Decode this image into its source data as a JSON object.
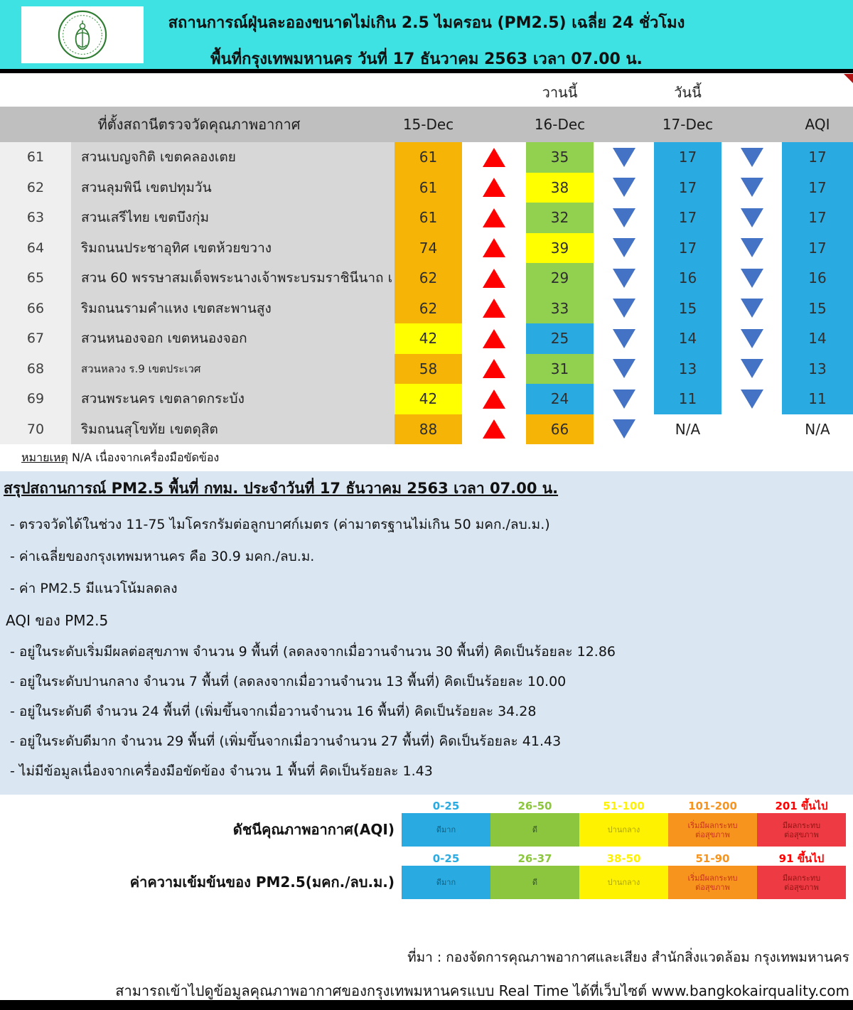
{
  "header": {
    "title_line1": "สถานการณ์ฝุ่นละอองขนาดไม่เกิน 2.5 ไมครอน (PM2.5) เฉลี่ย 24 ชั่วโมง",
    "title_line2": "พื้นที่กรุงเทพมหานคร วันที่ 17 ธันวาคม 2563 เวลา 07.00 น.",
    "logo": "bangkok-metropolitan-administration-seal",
    "bg_color": "#3FE2E2"
  },
  "table": {
    "group_headers": {
      "yesterday": "วานนี้",
      "today": "วันนี้"
    },
    "columns": [
      "ที่ตั้งสถานีตรวจวัดคุณภาพอากาศ",
      "15-Dec",
      "16-Dec",
      "17-Dec",
      "AQI"
    ],
    "rows": [
      {
        "id": "61",
        "station": "สวนเบญจกิติ  เขตคลองเตย",
        "d15": "61",
        "d15_color": "orange",
        "trend1": "up",
        "d16": "35",
        "d16_color": "green",
        "trend2": "down",
        "d17": "17",
        "d17_color": "blue",
        "trend3": "down",
        "aqi": "17",
        "aqi_color": "blue",
        "small": false
      },
      {
        "id": "62",
        "station": "สวนลุมพินี เขตปทุมวัน",
        "d15": "61",
        "d15_color": "orange",
        "trend1": "up",
        "d16": "38",
        "d16_color": "yellow",
        "trend2": "down",
        "d17": "17",
        "d17_color": "blue",
        "trend3": "down",
        "aqi": "17",
        "aqi_color": "blue",
        "small": false
      },
      {
        "id": "63",
        "station": "สวนเสรีไทย  เขตบึงกุ่ม",
        "d15": "61",
        "d15_color": "orange",
        "trend1": "up",
        "d16": "32",
        "d16_color": "green",
        "trend2": "down",
        "d17": "17",
        "d17_color": "blue",
        "trend3": "down",
        "aqi": "17",
        "aqi_color": "blue",
        "small": false
      },
      {
        "id": "64",
        "station": "ริมถนนประชาอุทิศ เขตห้วยขวาง",
        "d15": "74",
        "d15_color": "orange",
        "trend1": "up",
        "d16": "39",
        "d16_color": "yellow",
        "trend2": "down",
        "d17": "17",
        "d17_color": "blue",
        "trend3": "down",
        "aqi": "17",
        "aqi_color": "blue",
        "small": false
      },
      {
        "id": "65",
        "station": "สวน 60 พรรษาสมเด็จพระนางเจ้าพระบรมราชินีนาถ เ",
        "d15": "62",
        "d15_color": "orange",
        "trend1": "up",
        "d16": "29",
        "d16_color": "green",
        "trend2": "down",
        "d17": "16",
        "d17_color": "blue",
        "trend3": "down",
        "aqi": "16",
        "aqi_color": "blue",
        "small": false
      },
      {
        "id": "66",
        "station": "ริมถนนรามคำแหง เขตสะพานสูง",
        "d15": "62",
        "d15_color": "orange",
        "trend1": "up",
        "d16": "33",
        "d16_color": "green",
        "trend2": "down",
        "d17": "15",
        "d17_color": "blue",
        "trend3": "down",
        "aqi": "15",
        "aqi_color": "blue",
        "small": false
      },
      {
        "id": "67",
        "station": "สวนหนองจอก เขตหนองจอก",
        "d15": "42",
        "d15_color": "yellow",
        "trend1": "up",
        "d16": "25",
        "d16_color": "blue",
        "trend2": "down",
        "d17": "14",
        "d17_color": "blue",
        "trend3": "down",
        "aqi": "14",
        "aqi_color": "blue",
        "small": false
      },
      {
        "id": "68",
        "station": "สวนหลวง ร.9 เขตประเวศ",
        "d15": "58",
        "d15_color": "orange",
        "trend1": "up",
        "d16": "31",
        "d16_color": "green",
        "trend2": "down",
        "d17": "13",
        "d17_color": "blue",
        "trend3": "down",
        "aqi": "13",
        "aqi_color": "blue",
        "small": true
      },
      {
        "id": "69",
        "station": "สวนพระนคร เขตลาดกระบัง",
        "d15": "42",
        "d15_color": "yellow",
        "trend1": "up",
        "d16": "24",
        "d16_color": "blue",
        "trend2": "down",
        "d17": "11",
        "d17_color": "blue",
        "trend3": "down",
        "aqi": "11",
        "aqi_color": "blue",
        "small": false
      },
      {
        "id": "70",
        "station": "ริมถนนสุโขทัย เขตดุสิต",
        "d15": "88",
        "d15_color": "orange",
        "trend1": "up",
        "d16": "66",
        "d16_color": "orange",
        "trend2": "down",
        "d17": "N/A",
        "d17_color": "none",
        "trend3": "none",
        "aqi": "N/A",
        "aqi_color": "none",
        "small": false
      }
    ]
  },
  "note": {
    "label": "หมายเหตุ",
    "text": " N/A เนื่องจากเครื่องมือขัดข้อง"
  },
  "summary": {
    "heading": "สรุปสถานการณ์ PM2.5 พื้นที่ กทม. ประจำวันที่ 17 ธันวาคม 2563 เวลา 07.00 น.",
    "bullets": [
      "- ตรวจวัดได้ในช่วง 11-75 ไมโครกรัมต่อลูกบาศก์เมตร (ค่ามาตรฐานไม่เกิน 50 มคก./ลบ.ม.)",
      "- ค่าเฉลี่ยของกรุงเทพมหานคร คือ 30.9 มคก./ลบ.ม.",
      "- ค่า PM2.5  มีแนวโน้มลดลง"
    ],
    "aqi_heading": "AQI ของ PM2.5",
    "aqi_bullets": [
      "- อยู่ในระดับเริ่มมีผลต่อสุขภาพ จำนวน 9 พื้นที่ (ลดลงจากเมื่อวานจำนวน 30 พื้นที่) คิดเป็นร้อยละ 12.86",
      "- อยู่ในระดับปานกลาง จำนวน 7 พื้นที่ (ลดลงจากเมื่อวานจำนวน 13 พื้นที่) คิดเป็นร้อยละ 10.00",
      "- อยู่ในระดับดี จำนวน 24 พื้นที่ (เพิ่มขึ้นจากเมื่อวานจำนวน 16 พื้นที่) คิดเป็นร้อยละ 34.28",
      "- อยู่ในระดับดีมาก จำนวน 29 พื้นที่ (เพิ่มขึ้นจากเมื่อวานจำนวน 27 พื้นที่) คิดเป็นร้อยละ 41.43",
      "- ไม่มีข้อมูลเนื่องจากเครื่องมือขัดข้อง จำนวน 1 พื้นที่ คิดเป็นร้อยละ 1.43"
    ]
  },
  "legends": {
    "range_colors": [
      "#29ABE2",
      "#8CC63F",
      "#FFF200",
      "#F7941E",
      "#FF0000"
    ],
    "cell_colors": [
      "#29ABE2",
      "#8CC63F",
      "#FFF200",
      "#F7941E",
      "#EE3B43"
    ],
    "cell_text_colors": [
      "#155E7D",
      "#33591A",
      "#A8A400",
      "#C9331F",
      "#8F1414"
    ],
    "categories": [
      [
        "ดีมาก"
      ],
      [
        "ดี"
      ],
      [
        "ปานกลาง"
      ],
      [
        "เริ่มมีผลกระทบ",
        "ต่อสุขภาพ"
      ],
      [
        "มีผลกระทบ",
        "ต่อสุขภาพ"
      ]
    ],
    "aqi": {
      "label": "ดัชนีคุณภาพอากาศ(AQI)",
      "ranges": [
        "0-25",
        "26-50",
        "51-100",
        "101-200",
        "201 ขึ้นไป"
      ]
    },
    "pm25": {
      "label": "ค่าความเข้มข้นของ PM2.5(มคก./ลบ.ม.)",
      "ranges": [
        "0-25",
        "26-37",
        "38-50",
        "51-90",
        "91 ขึ้นไป"
      ]
    }
  },
  "footer": {
    "source": "ที่มา : กองจัดการคุณภาพอากาศและเสียง สำนักสิ่งแวดล้อม กรุงเทพมหานคร",
    "realtime": "สามารถเข้าไปดูข้อมูลคุณภาพอากาศของกรุงเทพมหานครแบบ Real Time ได้ที่เว็บไซต์ www.bangkokairquality.com"
  },
  "palette": {
    "header_bg": "#3FE2E2",
    "summary_bg": "#DAE7F3",
    "thead_bg": "#BFBFBF",
    "cell_orange": "#F5B406",
    "cell_yellow": "#FFFF00",
    "cell_green": "#92D050",
    "cell_blue": "#29ABE2",
    "arrow_up": "#FF0000",
    "arrow_down": "#4472C4"
  }
}
